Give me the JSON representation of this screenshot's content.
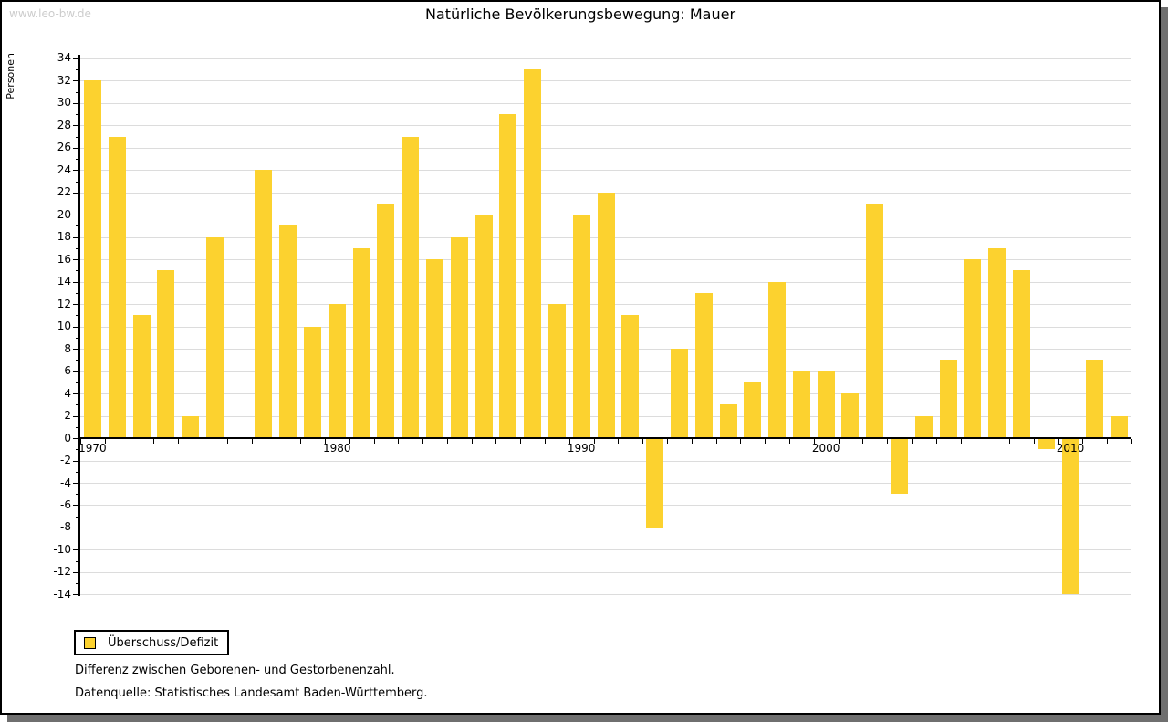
{
  "page": {
    "watermark": "www.leo-bw.de",
    "title": "Natürliche Bevölkerungsbewegung: Mauer",
    "legend_label": "Überschuss/Defizit",
    "footnote1": "Differenz zwischen Geborenen- und Gestorbenenzahl.",
    "footnote2": "Datenquelle: Statistisches Landesamt Baden-Württemberg."
  },
  "chart_data": {
    "type": "bar",
    "title": "Natürliche Bevölkerungsbewegung: Mauer",
    "xlabel": "",
    "ylabel": "Personen",
    "categories": [
      1970,
      1971,
      1972,
      1973,
      1974,
      1975,
      1976,
      1977,
      1978,
      1979,
      1980,
      1981,
      1982,
      1983,
      1984,
      1985,
      1986,
      1987,
      1988,
      1989,
      1990,
      1991,
      1992,
      1993,
      1994,
      1995,
      1996,
      1997,
      1998,
      1999,
      2000,
      2001,
      2002,
      2003,
      2004,
      2005,
      2006,
      2007,
      2008,
      2009,
      2010,
      2011,
      2012
    ],
    "series": [
      {
        "name": "Überschuss/Defizit",
        "values": [
          32,
          27,
          11,
          15,
          2,
          18,
          0,
          24,
          19,
          10,
          12,
          17,
          21,
          27,
          16,
          18,
          20,
          29,
          33,
          12,
          20,
          22,
          11,
          -8,
          8,
          13,
          3,
          5,
          14,
          6,
          6,
          4,
          21,
          -5,
          2,
          7,
          16,
          17,
          15,
          -1,
          -14,
          7,
          2
        ]
      }
    ],
    "ylim": [
      -14,
      34
    ],
    "ytick_step": 2,
    "x_axis_labels": [
      "1970",
      "1980",
      "1990",
      "2000",
      "2010"
    ],
    "grid": "horizontal",
    "legend_position": "bottom-left",
    "bar_color": "#fcd22f",
    "grid_color": "#dcdcdc",
    "axis_color": "#000000",
    "shadow_color": "#6f6f6f",
    "watermark_color": "#cccccc"
  }
}
